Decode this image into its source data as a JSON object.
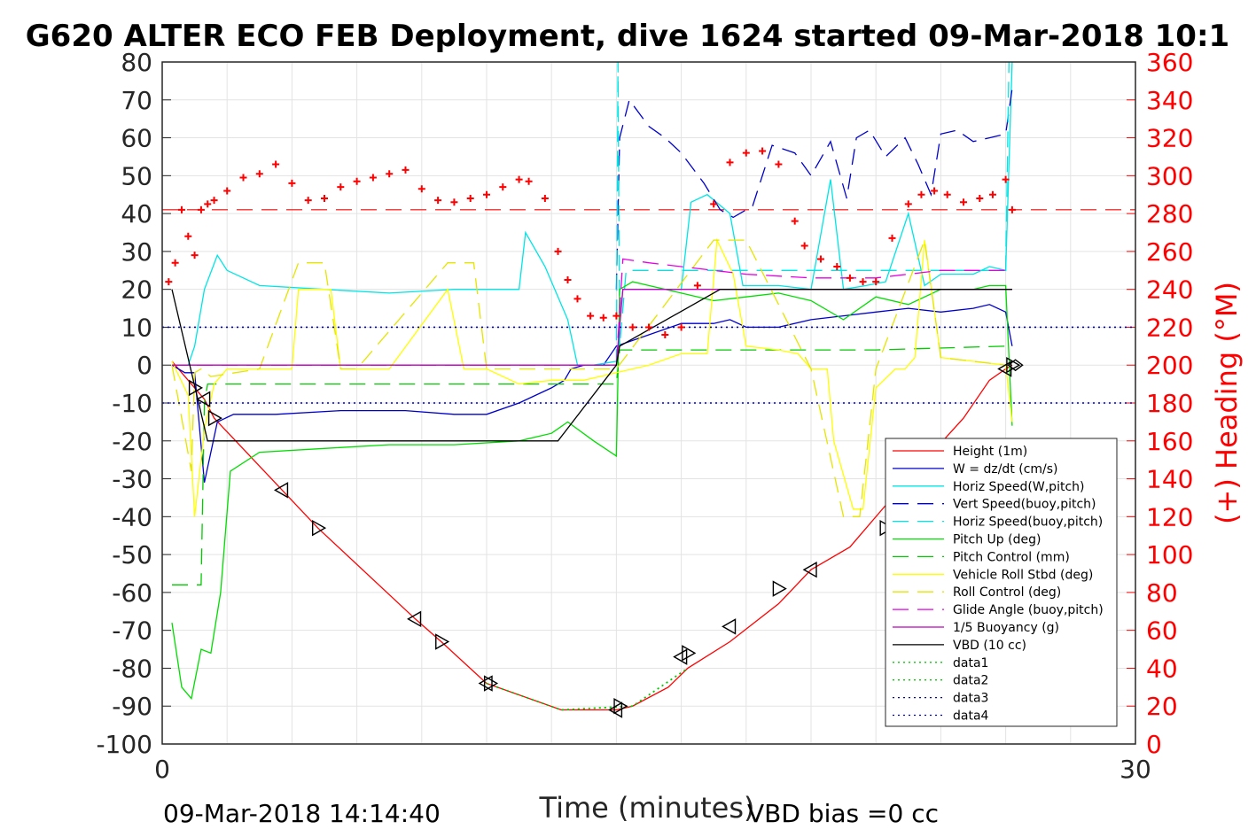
{
  "chart_data": {
    "type": "line",
    "title": "G620 ALTER ECO FEB Deployment, dive 1624 started 09-Mar-2018 10:1",
    "xlabel": "Time (minutes)",
    "ylabel_right": "(+) Heading (°M)",
    "footer_left": "09-Mar-2018 14:14:40",
    "footer_right": "VBD bias =0 cc",
    "xlim": [
      0,
      30
    ],
    "ylim": [
      -100,
      80
    ],
    "ylim_right": [
      0,
      360
    ],
    "x_ticks": [
      "0",
      "30"
    ],
    "y_ticks": [
      "80",
      "70",
      "60",
      "50",
      "40",
      "30",
      "20",
      "10",
      "0",
      "-10",
      "-20",
      "-30",
      "-40",
      "-50",
      "-60",
      "-70",
      "-80",
      "-90",
      "-100"
    ],
    "y_ticks_right": [
      "360",
      "340",
      "320",
      "300",
      "280",
      "260",
      "240",
      "220",
      "200",
      "180",
      "160",
      "140",
      "120",
      "100",
      "80",
      "60",
      "40",
      "20",
      "0"
    ],
    "grid": true,
    "legend_position": "lower-right",
    "colors": {
      "height": "#ff0000",
      "w": "#0000cd",
      "horiz": "#00e5e5",
      "vert_buoy": "#0000cd",
      "horiz_buoy": "#00e5e5",
      "pitch_up": "#00dd00",
      "pitch_ctrl": "#00cc00",
      "roll": "#ffff00",
      "roll_ctrl": "#e5e500",
      "glide": "#e600e6",
      "buoy": "#bf00bf",
      "vbd": "#000000",
      "heading": "#ff0000",
      "data": "#00cc00",
      "data_blue": "#0000aa"
    },
    "series": [
      {
        "name": "Height (1m)",
        "style": "solid",
        "color": "#ff0000",
        "x": [
          0.3,
          1.0,
          1.3,
          1.6,
          3.7,
          4.8,
          7.8,
          8.6,
          10.0,
          12.3,
          14.0,
          14.5,
          15.6,
          16.2,
          17.5,
          19.0,
          20.0,
          21.2,
          22.3,
          23.0,
          24.7,
          25.5,
          26.0,
          26.2
        ],
        "y": [
          1,
          -6,
          -9,
          -14,
          -33,
          -43,
          -67,
          -73,
          -84,
          -91,
          -91,
          -90,
          -85,
          -80,
          -73,
          -63,
          -54,
          -48,
          -37,
          -30,
          -14,
          -4,
          -1,
          0
        ]
      },
      {
        "name": "W = dz/dt (cm/s)",
        "style": "solid",
        "color": "#0000cd",
        "x": [
          0.3,
          0.7,
          1.0,
          1.3,
          1.7,
          2.2,
          3.5,
          5.5,
          7.5,
          9.0,
          10.0,
          11.0,
          12.0,
          12.4,
          12.6,
          13.0,
          13.6,
          14.0,
          15.0,
          16.0,
          17.0,
          17.5,
          18.0,
          19.0,
          20.0,
          21.0,
          22.0,
          23.0,
          24.0,
          25.0,
          25.5,
          26.0,
          26.2
        ],
        "y": [
          0,
          -2,
          -2,
          -31,
          -15,
          -13,
          -13,
          -12,
          -12,
          -13,
          -13,
          -10,
          -6,
          -4,
          -1,
          0,
          0,
          5,
          8,
          11,
          11,
          12,
          10,
          10,
          12,
          13,
          14,
          15,
          14,
          15,
          16,
          14,
          5
        ]
      },
      {
        "name": "Horiz Speed(W,pitch)",
        "style": "solid",
        "color": "#00e5e5",
        "x": [
          0.3,
          0.8,
          1.0,
          1.3,
          1.7,
          2.0,
          3.0,
          5.0,
          7.0,
          9.0,
          11.0,
          11.2,
          11.8,
          12.5,
          12.8,
          13.3,
          14.0,
          14.2,
          15.0,
          16.0,
          16.3,
          16.8,
          17.5,
          17.9,
          18.2,
          19.0,
          20.0,
          20.6,
          21.0,
          21.7,
          22.3,
          23.0,
          23.5,
          24.0,
          25.0,
          25.5,
          26.0,
          26.2
        ],
        "y": [
          0,
          0,
          5,
          20,
          29,
          25,
          21,
          20,
          19,
          20,
          20,
          35,
          26,
          12,
          0,
          0,
          1,
          20,
          20,
          20,
          43,
          45,
          40,
          21,
          21,
          21,
          20,
          49,
          20,
          21,
          22,
          40,
          21,
          24,
          24,
          26,
          25,
          80
        ]
      },
      {
        "name": "Vert Speed(buoy,pitch)",
        "style": "dashed",
        "color": "#0000cd",
        "x": [
          14.0,
          14.1,
          14.4,
          15.0,
          15.5,
          16.0,
          16.7,
          17.2,
          17.6,
          18.2,
          18.8,
          19.5,
          20.0,
          20.6,
          21.1,
          21.4,
          21.8,
          22.3,
          22.9,
          23.3,
          23.7,
          24.0,
          24.5,
          25.0,
          25.5,
          26.0,
          26.2
        ],
        "y": [
          20,
          60,
          70,
          63,
          60,
          56,
          48,
          41,
          39,
          42,
          58,
          56,
          50,
          59,
          44,
          60,
          62,
          55,
          60,
          53,
          45,
          61,
          62,
          59,
          60,
          61,
          73
        ]
      },
      {
        "name": "Horiz Speed(buoy,pitch)",
        "style": "dashed",
        "color": "#00e5e5",
        "x": [
          14.0,
          14.05,
          14.1,
          14.3,
          26.0,
          26.1
        ],
        "y": [
          0,
          80,
          5,
          25,
          25,
          80
        ]
      },
      {
        "name": "Pitch Up (deg)",
        "style": "solid",
        "color": "#00dd00",
        "x": [
          0.3,
          0.6,
          0.9,
          1.2,
          1.5,
          1.8,
          2.1,
          3.0,
          5.0,
          7.0,
          9.0,
          11.0,
          12.0,
          12.5,
          13.3,
          14.0,
          14.1,
          14.5,
          15.0,
          16.0,
          17.0,
          18.0,
          19.0,
          20.0,
          21.0,
          22.0,
          23.0,
          24.0,
          25.0,
          25.5,
          26.0,
          26.2
        ],
        "y": [
          -68,
          -85,
          -88,
          -75,
          -76,
          -60,
          -28,
          -23,
          -22,
          -21,
          -21,
          -20,
          -18,
          -15,
          -20,
          -24,
          20,
          22,
          21,
          19,
          17,
          18,
          19,
          17,
          12,
          18,
          16,
          20,
          20,
          21,
          21,
          -16
        ]
      },
      {
        "name": "Pitch Control (mm)",
        "style": "dashed",
        "color": "#00cc00",
        "x": [
          0.3,
          1.2,
          1.3,
          1.4,
          1.8,
          3.0,
          6.0,
          10.0,
          12.0,
          14.0,
          14.1,
          16.0,
          20.0,
          22.0,
          26.0,
          26.2
        ],
        "y": [
          -58,
          -58,
          -10,
          -5,
          -5,
          -5,
          -5,
          -5,
          -5,
          -5,
          4,
          4,
          4,
          4,
          5,
          5
        ]
      },
      {
        "name": "Vehicle Roll Stbd (deg)",
        "style": "solid",
        "color": "#ffff00",
        "x": [
          0.3,
          0.8,
          1.0,
          1.3,
          1.6,
          2.0,
          3.0,
          4.0,
          4.2,
          5.2,
          5.5,
          7.0,
          8.8,
          9.3,
          10.0,
          11.0,
          12.0,
          13.0,
          14.0,
          15.0,
          16.0,
          16.8,
          17.1,
          17.6,
          18.0,
          19.0,
          19.6,
          20.0,
          20.5,
          20.7,
          21.3,
          21.6,
          22.0,
          22.6,
          22.9,
          23.2,
          23.5,
          24.0,
          25.0,
          26.0,
          26.2
        ],
        "y": [
          1,
          -8,
          -40,
          -17,
          -5,
          -1,
          -1,
          -1,
          20,
          20,
          -1,
          -1,
          20,
          -1,
          -1,
          -5,
          -4,
          -4,
          -2,
          0,
          3,
          3,
          33,
          24,
          5,
          4,
          3,
          -1,
          -1,
          -20,
          -38,
          -38,
          -6,
          -1,
          -1,
          2,
          33,
          2,
          1,
          0,
          -15
        ]
      },
      {
        "name": "Roll Control (deg)",
        "style": "dashed",
        "color": "#e5e500",
        "x": [
          0.3,
          0.9,
          1.0,
          1.2,
          1.5,
          3.0,
          4.2,
          5.0,
          5.5,
          6.0,
          8.8,
          9.6,
          10.0,
          14.0,
          17.0,
          18.0,
          20.0,
          21.0,
          21.5,
          22.0,
          23.5,
          24.0,
          26.0
        ],
        "y": [
          0,
          -28,
          -2,
          -1,
          -3,
          -1,
          27,
          27,
          -1,
          -1,
          27,
          27,
          -1,
          -1,
          33,
          33,
          -1,
          -40,
          -40,
          -1,
          33,
          2,
          0
        ]
      },
      {
        "name": "Glide Angle (buoy,pitch)",
        "style": "dashed",
        "color": "#e600e6",
        "x": [
          0.3,
          14.0,
          14.2,
          15.0,
          16.0,
          17.0,
          18.0,
          20.0,
          22.0,
          24.0,
          26.0
        ],
        "y": [
          0,
          0,
          28,
          27,
          26,
          25,
          24,
          23,
          23,
          25,
          25
        ]
      },
      {
        "name": "1/5 Buoyancy (g)",
        "style": "solid",
        "color": "#bf00bf",
        "x": [
          0.3,
          14.0,
          14.2,
          26.2
        ],
        "y": [
          0,
          0,
          20,
          20
        ]
      },
      {
        "name": "VBD (10 cc)",
        "style": "solid",
        "color": "#000000",
        "x": [
          0.3,
          1.4,
          12.2,
          14.0,
          14.1,
          17.2,
          26.2
        ],
        "y": [
          20,
          -20,
          -20,
          0,
          5,
          20,
          20
        ]
      },
      {
        "name": "data1",
        "style": "dotted",
        "color": "#00cc00",
        "x": [
          10.0,
          12.3,
          14.5,
          16.2
        ],
        "y": [
          -84,
          -91,
          -90,
          -80
        ]
      },
      {
        "name": "data2",
        "style": "dotted",
        "color": "#00cc00",
        "x": [
          10.0,
          12.3,
          14.5,
          16.2
        ],
        "y": [
          -84,
          -91,
          -90,
          -80
        ]
      },
      {
        "name": "data3",
        "style": "dotted",
        "color": "#0000aa",
        "x": [
          0,
          30
        ],
        "y": [
          10,
          10
        ]
      },
      {
        "name": "data4",
        "style": "dotted",
        "color": "#0000aa",
        "x": [
          0,
          30
        ],
        "y": [
          -10,
          -10
        ]
      }
    ],
    "reference_lines": [
      {
        "axis": "right",
        "y": 282,
        "style": "dashed",
        "color": "#ff0000"
      }
    ],
    "triangle_markers": {
      "x": [
        1.0,
        1.3,
        1.6,
        3.7,
        4.8,
        7.8,
        8.6,
        10.0,
        10.1,
        14.0,
        14.1,
        16.0,
        16.2,
        17.5,
        19.0,
        20.0,
        22.3,
        26.0,
        26.2
      ],
      "y": [
        -6,
        -9,
        -14,
        -33,
        -43,
        -67,
        -73,
        -84,
        -84,
        -91,
        -90,
        -77,
        -76,
        -69,
        -59,
        -54,
        -43,
        -1,
        0
      ]
    },
    "heading": {
      "name": "Heading",
      "axis": "right",
      "marker": "+",
      "x": [
        0.2,
        0.4,
        0.6,
        0.8,
        1.0,
        1.2,
        1.4,
        1.6,
        2.0,
        2.5,
        3.0,
        3.5,
        4.0,
        4.5,
        5.0,
        5.5,
        6.0,
        6.5,
        7.0,
        7.5,
        8.0,
        8.5,
        9.0,
        9.5,
        10.0,
        10.5,
        11.0,
        11.3,
        11.8,
        12.2,
        12.5,
        12.8,
        13.2,
        13.6,
        14.0,
        14.5,
        15.0,
        15.5,
        16.0,
        16.5,
        17.0,
        17.5,
        18.0,
        18.5,
        19.0,
        19.5,
        19.8,
        20.3,
        20.8,
        21.2,
        21.6,
        22.0,
        22.5,
        23.0,
        23.4,
        23.8,
        24.2,
        24.7,
        25.2,
        25.6,
        26.0,
        26.2
      ],
      "y": [
        244,
        254,
        282,
        268,
        258,
        282,
        285,
        287,
        292,
        299,
        301,
        306,
        296,
        287,
        288,
        294,
        297,
        299,
        301,
        303,
        293,
        287,
        286,
        288,
        290,
        294,
        298,
        297,
        288,
        260,
        245,
        235,
        226,
        225,
        226,
        220,
        220,
        216,
        220,
        242,
        285,
        307,
        312,
        313,
        306,
        276,
        263,
        256,
        252,
        246,
        244,
        244,
        267,
        285,
        290,
        292,
        290,
        286,
        288,
        290,
        298,
        282
      ]
    }
  }
}
